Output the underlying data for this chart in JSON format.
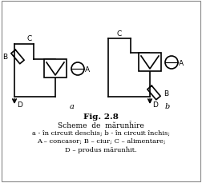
{
  "title": "Fig. 2.8",
  "line1": "Scheme  de  mărunȟire",
  "line2": "a - în circuit deschis; b - în circuit închis;",
  "line3": "A – concasor; B – ciur; C – alimentare;",
  "line4": "D – produs mărunȟit.",
  "bg_color": "#ffffff",
  "diagram_color": "#000000",
  "lw": 1.2,
  "fig_width": 2.52,
  "fig_height": 2.3,
  "dpi": 100
}
